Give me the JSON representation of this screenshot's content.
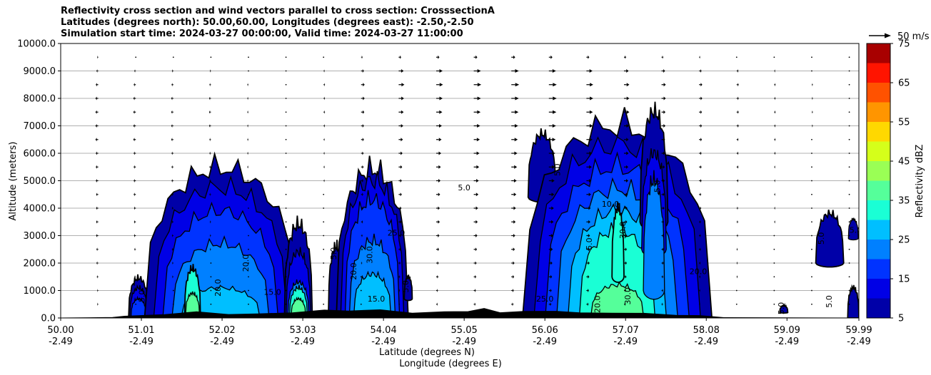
{
  "chart_data": {
    "type": "heatmap",
    "title_lines": [
      "Reflectivity cross section and wind vectors parallel to cross section: CrosssectionA",
      "Latitudes (degrees north): 50.00,60.00, Longitudes (degrees east): -2.50,-2.50",
      "Simulation start time: 2024-03-27 00:00:00, Valid time: 2024-03-27 11:00:00"
    ],
    "xlabel_lines": [
      "Latitude (degrees N)",
      "Longitude (degrees E)"
    ],
    "ylabel": "Altitude (meters)",
    "x_ticks": [
      {
        "lat": "50.00",
        "lon": "-2.49"
      },
      {
        "lat": "51.01",
        "lon": "-2.49"
      },
      {
        "lat": "52.02",
        "lon": "-2.49"
      },
      {
        "lat": "53.03",
        "lon": "-2.49"
      },
      {
        "lat": "54.04",
        "lon": "-2.49"
      },
      {
        "lat": "55.05",
        "lon": "-2.49"
      },
      {
        "lat": "56.06",
        "lon": "-2.49"
      },
      {
        "lat": "57.07",
        "lon": "-2.49"
      },
      {
        "lat": "58.08",
        "lon": "-2.49"
      },
      {
        "lat": "59.09",
        "lon": "-2.49"
      },
      {
        "lat": "59.99",
        "lon": "-2.49"
      }
    ],
    "xlim": [
      50.0,
      59.99
    ],
    "y_ticks": [
      "0.0",
      "1000.0",
      "2000.0",
      "3000.0",
      "4000.0",
      "5000.0",
      "6000.0",
      "7000.0",
      "8000.0",
      "9000.0",
      "10000.0"
    ],
    "ylim": [
      0,
      10000
    ],
    "grid": "horizontal",
    "colorbar": {
      "label": "Reflectivity dBZ",
      "ticks": [
        "5",
        "15",
        "25",
        "35",
        "45",
        "55",
        "65",
        "75"
      ],
      "levels": [
        5,
        10,
        15,
        20,
        25,
        30,
        35,
        40,
        45,
        50,
        55,
        60,
        65,
        70,
        75
      ],
      "colors": [
        "#0000a8",
        "#0000e6",
        "#0033ff",
        "#0080ff",
        "#00bfff",
        "#1affd5",
        "#55ff9a",
        "#9aff55",
        "#d5ff1a",
        "#ffd800",
        "#ff9500",
        "#ff5200",
        "#ff1400",
        "#a80000"
      ]
    },
    "wind_key": {
      "label": "50 m/s",
      "speed": 50
    },
    "contour_labels": [
      {
        "text": "5.0",
        "lat": 55.05,
        "alt": 4650
      },
      {
        "text": "5.0",
        "lat": 53.45,
        "alt": 2350
      },
      {
        "text": "20.0",
        "lat": 52.35,
        "alt": 2000
      },
      {
        "text": "15.0",
        "lat": 52.65,
        "alt": 850
      },
      {
        "text": "20.0",
        "lat": 52.0,
        "alt": 1100
      },
      {
        "text": "30.0",
        "lat": 53.9,
        "alt": 2300
      },
      {
        "text": "25.0",
        "lat": 54.2,
        "alt": 3000
      },
      {
        "text": "20.0",
        "lat": 53.7,
        "alt": 1700
      },
      {
        "text": "5.0",
        "lat": 54.35,
        "alt": 1150
      },
      {
        "text": "15.0",
        "lat": 53.95,
        "alt": 600
      },
      {
        "text": "5.0",
        "lat": 51.05,
        "alt": 800
      },
      {
        "text": "5.0",
        "lat": 56.65,
        "alt": 2700
      },
      {
        "text": "10.0",
        "lat": 56.88,
        "alt": 4050
      },
      {
        "text": "30.0",
        "lat": 57.07,
        "alt": 3200
      },
      {
        "text": "30.0",
        "lat": 57.13,
        "alt": 800
      },
      {
        "text": "25.0",
        "lat": 56.06,
        "alt": 600
      },
      {
        "text": "20.0",
        "lat": 56.75,
        "alt": 500
      },
      {
        "text": "5.0",
        "lat": 57.5,
        "alt": 4800
      },
      {
        "text": "20.0",
        "lat": 57.98,
        "alt": 1600
      },
      {
        "text": "5.0",
        "lat": 56.25,
        "alt": 5400
      },
      {
        "text": "5.0",
        "lat": 59.55,
        "alt": 2900
      },
      {
        "text": "5.0",
        "lat": 59.95,
        "alt": 3100
      },
      {
        "text": "5.0",
        "lat": 59.65,
        "alt": 600
      },
      {
        "text": "5.0",
        "lat": 59.05,
        "alt": 350
      }
    ],
    "cells": [
      {
        "lat_start": 50.85,
        "lat_end": 51.1,
        "levels": [
          [
            5,
            0,
            1450
          ],
          [
            10,
            0,
            1100
          ],
          [
            15,
            0,
            700
          ]
        ]
      },
      {
        "lat_start": 51.2,
        "lat_end": 51.4,
        "levels": [
          [
            5,
            300,
            800
          ]
        ]
      },
      {
        "lat_start": 51.05,
        "lat_end": 52.95,
        "levels": [
          [
            5,
            0,
            5450
          ],
          [
            10,
            0,
            4750
          ],
          [
            15,
            0,
            3900
          ],
          [
            20,
            0,
            2700
          ],
          [
            25,
            0,
            1100
          ]
        ]
      },
      {
        "lat_start": 51.55,
        "lat_end": 51.75,
        "levels": [
          [
            30,
            0,
            1800
          ],
          [
            35,
            0,
            900
          ]
        ]
      },
      {
        "lat_start": 52.8,
        "lat_end": 53.15,
        "levels": [
          [
            5,
            0,
            3400
          ],
          [
            10,
            0,
            2400
          ],
          [
            20,
            0,
            1300
          ],
          [
            30,
            0,
            1100
          ],
          [
            35,
            0,
            700
          ]
        ]
      },
      {
        "lat_start": 53.35,
        "lat_end": 53.55,
        "levels": [
          [
            5,
            0,
            2600
          ]
        ]
      },
      {
        "lat_start": 53.45,
        "lat_end": 54.35,
        "levels": [
          [
            5,
            0,
            5400
          ],
          [
            10,
            0,
            5000
          ],
          [
            15,
            0,
            4300
          ],
          [
            20,
            0,
            2800
          ],
          [
            25,
            0,
            1600
          ]
        ]
      },
      {
        "lat_start": 54.3,
        "lat_end": 54.4,
        "levels": [
          [
            5,
            700,
            1500
          ]
        ]
      },
      {
        "lat_start": 55.85,
        "lat_end": 56.2,
        "levels": [
          [
            5,
            4400,
            6700
          ]
        ]
      },
      {
        "lat_start": 55.78,
        "lat_end": 58.15,
        "levels": [
          [
            5,
            0,
            7000
          ],
          [
            10,
            0,
            6300
          ],
          [
            15,
            0,
            5500
          ],
          [
            20,
            0,
            4700
          ],
          [
            25,
            0,
            3900
          ],
          [
            30,
            0,
            3200
          ],
          [
            35,
            0,
            1200
          ]
        ]
      },
      {
        "lat_start": 56.9,
        "lat_end": 57.05,
        "levels": [
          [
            30,
            1500,
            4000
          ]
        ]
      },
      {
        "lat_start": 57.25,
        "lat_end": 57.6,
        "levels": [
          [
            5,
            3500,
            7500
          ],
          [
            10,
            2500,
            6000
          ],
          [
            20,
            1000,
            5000
          ]
        ]
      },
      {
        "lat_start": 59.45,
        "lat_end": 59.8,
        "levels": [
          [
            5,
            2000,
            3800
          ]
        ]
      },
      {
        "lat_start": 59.85,
        "lat_end": 59.99,
        "levels": [
          [
            5,
            0,
            1100
          ],
          [
            5,
            2900,
            3600
          ]
        ]
      },
      {
        "lat_start": 59.0,
        "lat_end": 59.1,
        "levels": [
          [
            5,
            200,
            450
          ]
        ]
      }
    ],
    "terrain": [
      [
        50.0,
        0
      ],
      [
        50.65,
        0
      ],
      [
        50.8,
        90
      ],
      [
        51.3,
        110
      ],
      [
        51.7,
        220
      ],
      [
        52.1,
        150
      ],
      [
        52.5,
        130
      ],
      [
        52.9,
        200
      ],
      [
        53.3,
        300
      ],
      [
        53.6,
        230
      ],
      [
        54.0,
        320
      ],
      [
        54.4,
        170
      ],
      [
        54.8,
        210
      ],
      [
        55.1,
        260
      ],
      [
        55.3,
        330
      ],
      [
        55.5,
        190
      ],
      [
        55.8,
        260
      ],
      [
        56.2,
        220
      ],
      [
        56.5,
        200
      ],
      [
        56.9,
        180
      ],
      [
        57.3,
        150
      ],
      [
        57.7,
        120
      ],
      [
        58.0,
        80
      ],
      [
        58.3,
        0
      ],
      [
        59.99,
        0
      ]
    ],
    "wind_vectors": {
      "altitudes": [
        500,
        1000,
        1500,
        2000,
        2500,
        3000,
        3500,
        4000,
        4500,
        5000,
        5500,
        6000,
        6500,
        7000,
        7500,
        8000,
        8500,
        9000,
        9500
      ],
      "lat_spacing": 0.47,
      "u_ms": [
        [
          -3,
          -3,
          -2,
          -2,
          -1,
          0,
          0,
          1,
          2,
          3,
          4,
          5,
          6,
          7,
          6,
          5,
          4,
          3,
          2,
          1,
          0,
          0
        ],
        [
          -4,
          -3,
          -3,
          -2,
          -2,
          -1,
          0,
          1,
          2,
          3,
          5,
          6,
          7,
          8,
          7,
          6,
          5,
          3,
          2,
          1,
          0,
          0
        ],
        [
          -5,
          -4,
          -4,
          -3,
          -2,
          -1,
          0,
          1,
          2,
          4,
          6,
          7,
          8,
          9,
          8,
          7,
          5,
          4,
          3,
          2,
          1,
          0
        ],
        [
          -5,
          -5,
          -4,
          -3,
          -2,
          -1,
          0,
          2,
          3,
          5,
          7,
          8,
          9,
          10,
          9,
          8,
          6,
          4,
          3,
          2,
          1,
          1
        ],
        [
          -6,
          -5,
          -4,
          -4,
          -3,
          -2,
          0,
          2,
          4,
          6,
          8,
          9,
          10,
          11,
          10,
          8,
          6,
          5,
          3,
          2,
          1,
          1
        ],
        [
          -6,
          -6,
          -5,
          -4,
          -3,
          -2,
          0,
          2,
          4,
          7,
          9,
          10,
          11,
          12,
          10,
          9,
          7,
          5,
          4,
          2,
          1,
          1
        ],
        [
          -6,
          -6,
          -5,
          -4,
          -3,
          -2,
          -1,
          2,
          5,
          8,
          10,
          11,
          12,
          13,
          11,
          9,
          7,
          5,
          4,
          3,
          2,
          1
        ],
        [
          -7,
          -6,
          -5,
          -4,
          -3,
          -2,
          -1,
          2,
          5,
          8,
          10,
          12,
          13,
          14,
          12,
          10,
          8,
          6,
          4,
          3,
          2,
          1
        ],
        [
          -7,
          -6,
          -6,
          -5,
          -4,
          -2,
          -1,
          2,
          6,
          9,
          11,
          13,
          14,
          15,
          13,
          11,
          8,
          6,
          4,
          3,
          2,
          1
        ],
        [
          -7,
          -7,
          -6,
          -5,
          -4,
          -3,
          -1,
          3,
          6,
          9,
          12,
          14,
          15,
          16,
          14,
          12,
          9,
          7,
          5,
          3,
          2,
          1
        ],
        [
          -8,
          -7,
          -6,
          -5,
          -4,
          -3,
          -1,
          3,
          7,
          10,
          13,
          15,
          16,
          17,
          15,
          12,
          9,
          7,
          5,
          3,
          2,
          1
        ],
        [
          -8,
          -7,
          -6,
          -5,
          -4,
          -3,
          -1,
          3,
          7,
          11,
          14,
          16,
          17,
          18,
          16,
          13,
          10,
          7,
          5,
          4,
          2,
          1
        ],
        [
          -8,
          -8,
          -7,
          -6,
          -4,
          -3,
          -1,
          3,
          8,
          12,
          15,
          17,
          18,
          19,
          17,
          13,
          10,
          8,
          5,
          4,
          2,
          1
        ],
        [
          -9,
          -8,
          -7,
          -6,
          -5,
          -3,
          -1,
          4,
          8,
          13,
          16,
          18,
          19,
          20,
          18,
          14,
          11,
          8,
          6,
          4,
          3,
          1
        ],
        [
          -9,
          -8,
          -7,
          -6,
          -5,
          -3,
          -1,
          4,
          9,
          14,
          17,
          19,
          20,
          21,
          18,
          15,
          11,
          8,
          6,
          4,
          3,
          1
        ],
        [
          -9,
          -8,
          -7,
          -6,
          -5,
          -3,
          -1,
          4,
          10,
          15,
          18,
          20,
          21,
          22,
          19,
          15,
          12,
          9,
          6,
          4,
          3,
          2
        ],
        [
          -8,
          -7,
          -6,
          -5,
          -4,
          -3,
          -1,
          4,
          10,
          16,
          19,
          21,
          22,
          22,
          19,
          15,
          12,
          9,
          6,
          4,
          3,
          2
        ],
        [
          -6,
          -5,
          -4,
          -4,
          -3,
          -2,
          0,
          3,
          8,
          14,
          18,
          20,
          21,
          20,
          17,
          13,
          10,
          7,
          5,
          3,
          2,
          1
        ],
        [
          -3,
          -3,
          -2,
          -2,
          -1,
          -1,
          0,
          2,
          4,
          7,
          9,
          10,
          11,
          10,
          8,
          6,
          5,
          3,
          2,
          1,
          1,
          0
        ]
      ]
    }
  }
}
